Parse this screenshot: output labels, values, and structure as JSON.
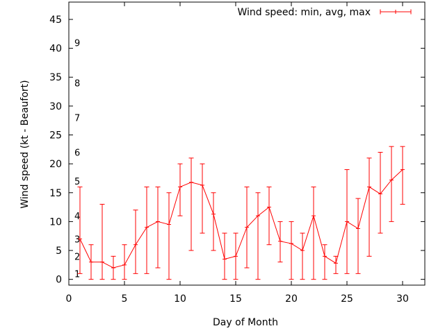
{
  "chart_data": {
    "type": "line",
    "xlabel": "Day of Month",
    "ylabel": "Wind speed (kt - Beaufort)",
    "xlim": [
      0,
      32
    ],
    "ylim": [
      -1,
      48
    ],
    "xticks": [
      0,
      5,
      10,
      15,
      20,
      25,
      30
    ],
    "yticks": [
      0,
      5,
      10,
      15,
      20,
      25,
      30,
      35,
      40,
      45
    ],
    "grid": false,
    "legend_placement": "top-right",
    "series": [
      {
        "name": "Wind speed: min, avg, max",
        "color": "#ff0000",
        "style": "line-with-error-bars",
        "x": [
          1,
          2,
          3,
          4,
          5,
          6,
          7,
          8,
          9,
          10,
          11,
          12,
          13,
          14,
          15,
          16,
          17,
          18,
          19,
          20,
          21,
          22,
          23,
          24,
          25,
          26,
          27,
          28,
          29,
          30
        ],
        "avg": [
          7,
          3,
          3,
          2,
          2.5,
          6,
          9,
          10,
          9.5,
          16,
          16.8,
          16.3,
          11.3,
          3.5,
          4,
          9,
          11,
          12.5,
          6.6,
          6.2,
          5,
          11,
          4,
          2.8,
          10,
          8.8,
          16,
          14.8,
          17.2,
          19
        ],
        "min": [
          1,
          0,
          0,
          0,
          0,
          1,
          1,
          2,
          0,
          11,
          5,
          8,
          5,
          0,
          0,
          2,
          0,
          6,
          3,
          0,
          0,
          0,
          0,
          1,
          1,
          1,
          4,
          8,
          10,
          13
        ],
        "max": [
          16,
          6,
          13,
          4,
          6,
          12,
          16,
          16,
          15,
          20,
          21,
          20,
          15,
          8,
          8,
          16,
          15,
          16,
          10,
          10,
          8,
          16,
          6,
          4,
          19,
          14,
          21,
          22,
          23,
          23
        ]
      }
    ],
    "annotations": [
      {
        "text": "1",
        "y": 1
      },
      {
        "text": "2",
        "y": 4
      },
      {
        "text": "3",
        "y": 7
      },
      {
        "text": "4",
        "y": 11
      },
      {
        "text": "5",
        "y": 17
      },
      {
        "text": "6",
        "y": 22
      },
      {
        "text": "7",
        "y": 28
      },
      {
        "text": "8",
        "y": 34
      },
      {
        "text": "9",
        "y": 41
      }
    ]
  }
}
